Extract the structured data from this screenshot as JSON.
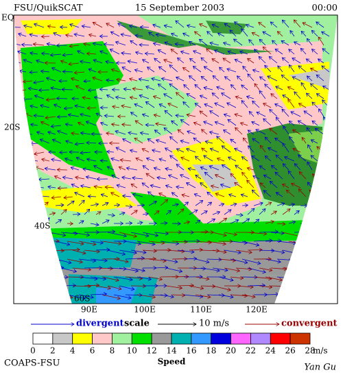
{
  "header": {
    "source": "FSU/QuikSCAT",
    "date": "15 September 2003",
    "time": "00:00"
  },
  "lat_labels": [
    "EQ",
    "20S",
    "40S",
    "60S"
  ],
  "lon_labels": [
    "90E",
    "100E",
    "110E",
    "120E"
  ],
  "legend": {
    "divergent": "divergent",
    "scale": "scale",
    "scale_value": "10 m/s",
    "convergent": "convergent",
    "divergent_color": "#0000cc",
    "convergent_color": "#990000"
  },
  "colorbar": {
    "ticks": [
      "0",
      "2",
      "4",
      "6",
      "8",
      "10",
      "12",
      "14",
      "16",
      "18",
      "20",
      "22",
      "24",
      "26",
      "28"
    ],
    "colors": [
      "#ffffff",
      "#c8c8c8",
      "#ffff00",
      "#ffc8c8",
      "#a0f0a0",
      "#00e000",
      "#999999",
      "#00b0b0",
      "#3399ff",
      "#0000dd",
      "#ff66ff",
      "#b088ff",
      "#ff0000",
      "#cc3300"
    ],
    "unit": "m/s",
    "label": "Speed"
  },
  "footer": {
    "org": "COAPS-FSU",
    "author": "Yan Gu"
  }
}
